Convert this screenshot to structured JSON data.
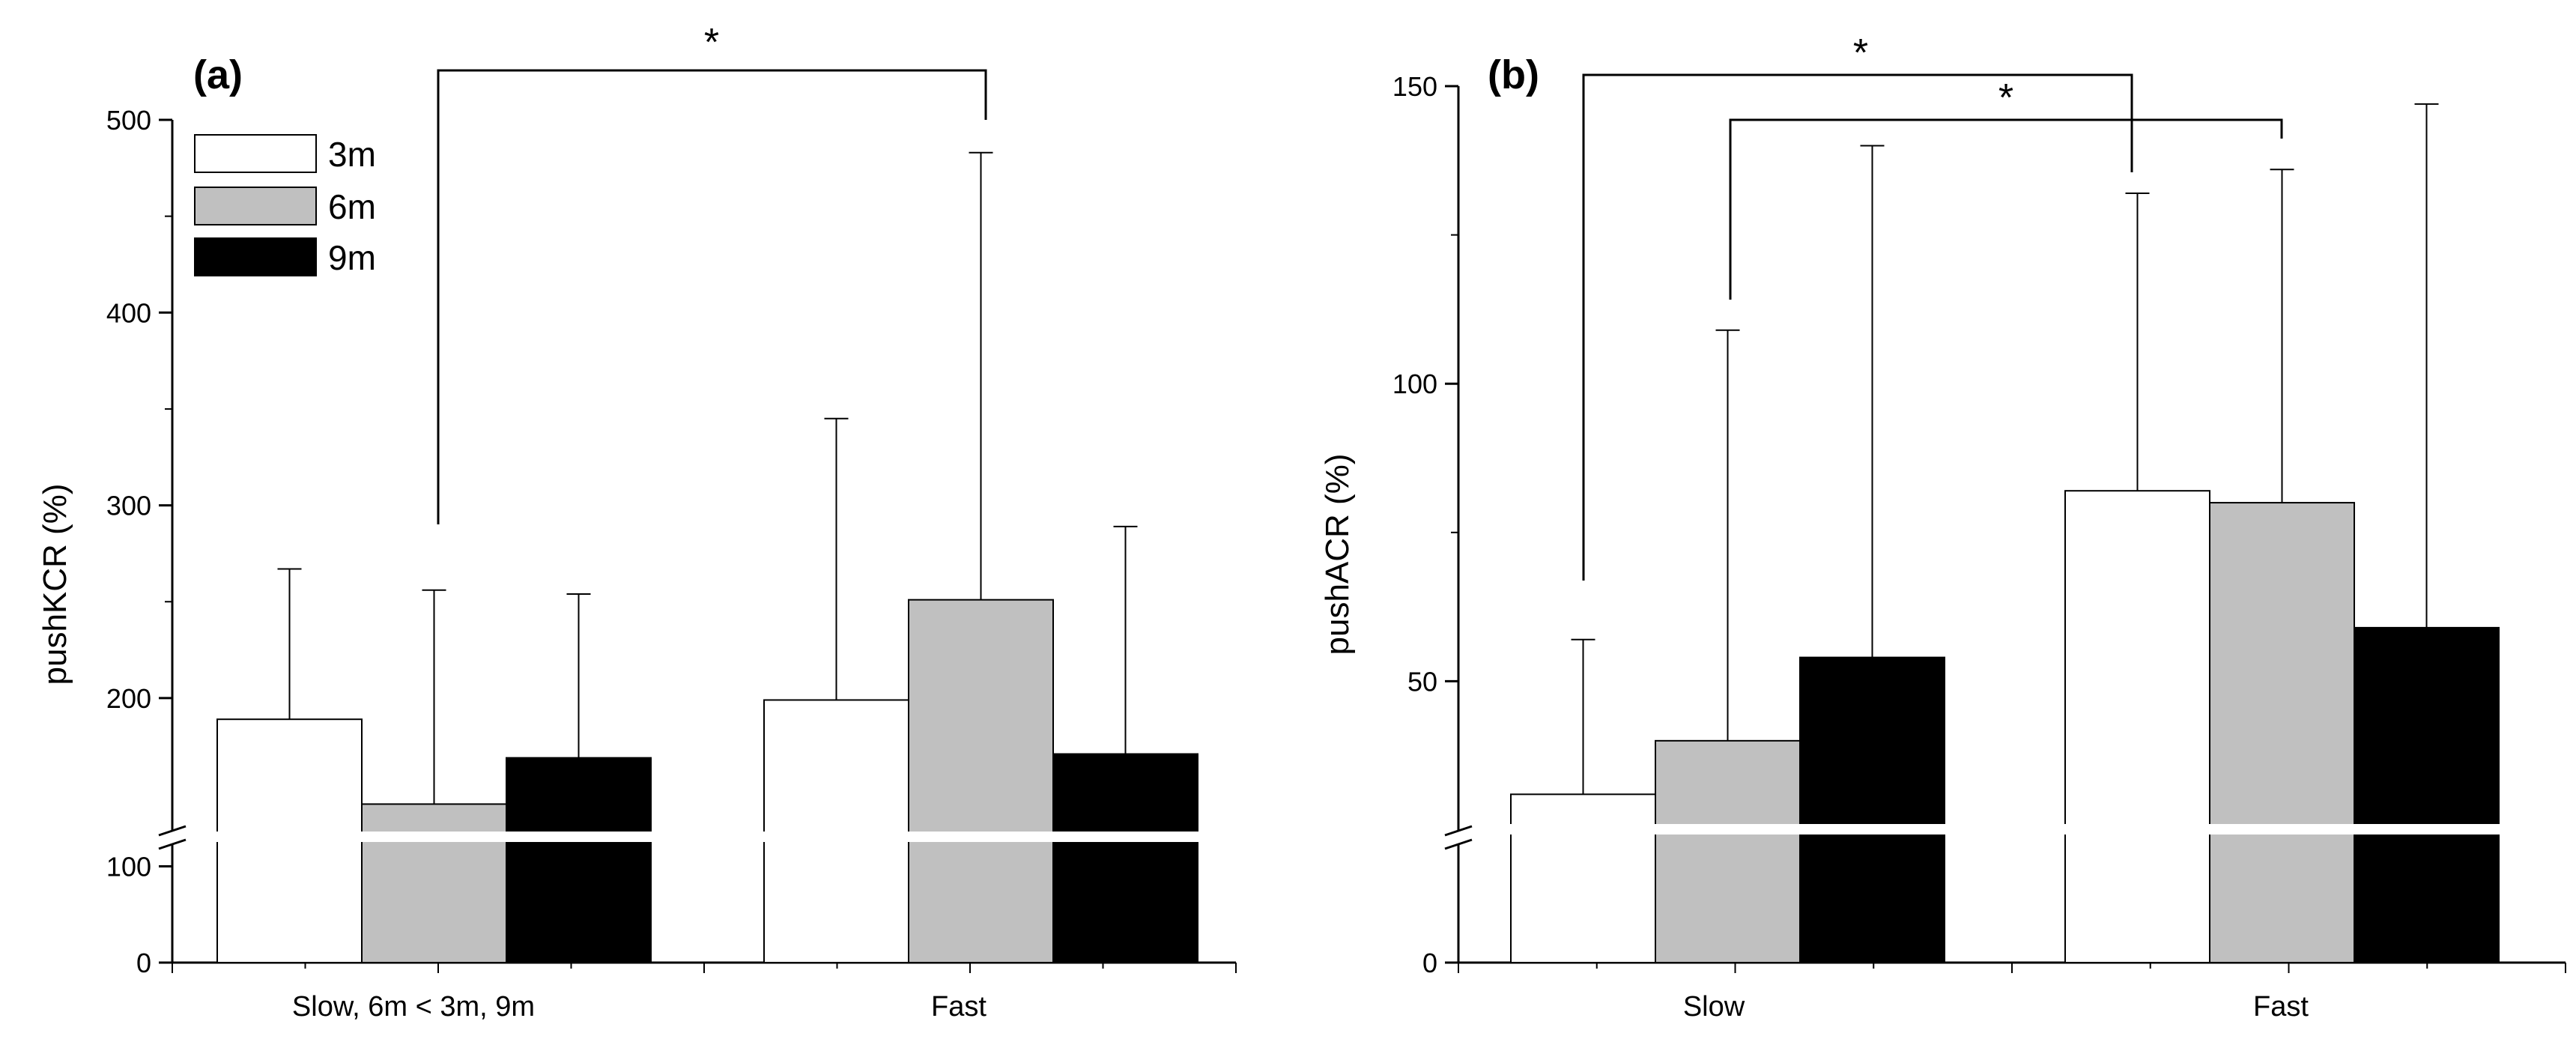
{
  "chart_data": [
    {
      "type": "bar",
      "panel_label": "(a)",
      "ylabel": "pushKCR (%)",
      "categories": [
        "Slow, 6m < 3m, 9m",
        "Fast"
      ],
      "series": [
        {
          "name": "3m",
          "color": "#ffffff",
          "values": [
            189,
            199
          ],
          "errors": [
            78,
            146
          ]
        },
        {
          "name": "6m",
          "color": "#c0c0c0",
          "values": [
            145,
            251
          ],
          "errors": [
            111,
            232
          ]
        },
        {
          "name": "9m",
          "color": "#000000",
          "values": [
            169,
            171
          ],
          "errors": [
            85,
            118
          ]
        }
      ],
      "y_ticks_upper": [
        "200",
        "300",
        "400",
        "500"
      ],
      "y_ticks_lower": [
        "0",
        "100"
      ],
      "axis_break": true,
      "ylim_lower": [
        0,
        130
      ],
      "ylim_upper": [
        130,
        500
      ],
      "legend": {
        "position": "top-left",
        "entries": [
          "3m",
          "6m",
          "9m"
        ]
      },
      "significance": [
        {
          "from": "Slow 6m",
          "to": "Fast 6m",
          "label": "*"
        }
      ]
    },
    {
      "type": "bar",
      "panel_label": "(b)",
      "ylabel": "pushACR (%)",
      "categories": [
        "Slow",
        "Fast"
      ],
      "series": [
        {
          "name": "3m",
          "color": "#ffffff",
          "values": [
            31,
            82
          ],
          "errors": [
            26,
            50
          ]
        },
        {
          "name": "6m",
          "color": "#c0c0c0",
          "values": [
            40,
            80
          ],
          "errors": [
            69,
            56
          ]
        },
        {
          "name": "9m",
          "color": "#000000",
          "values": [
            54,
            59
          ],
          "errors": [
            86,
            88
          ]
        }
      ],
      "y_ticks_upper": [
        "50",
        "100",
        "150"
      ],
      "y_ticks_lower": [
        "0"
      ],
      "axis_break": true,
      "ylim_lower": [
        0,
        25
      ],
      "ylim_upper": [
        25,
        150
      ],
      "significance": [
        {
          "from": "Slow 3m",
          "to": "Fast 3m",
          "label": "*"
        },
        {
          "from": "Slow 6m",
          "to": "Fast 6m",
          "label": "*"
        }
      ]
    }
  ]
}
